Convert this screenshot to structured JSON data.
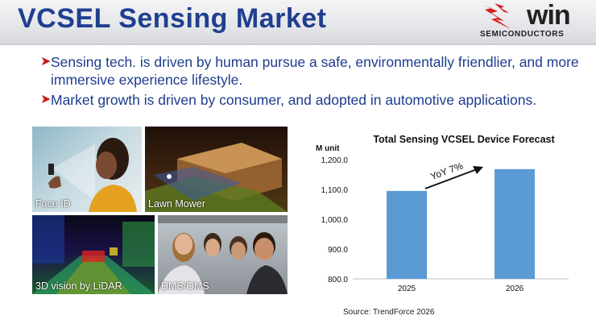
{
  "slide": {
    "title": "VCSEL Sensing Market",
    "logo": {
      "brand": "win",
      "subtitle": "SEMICONDUCTORS"
    },
    "bullets": [
      "Sensing tech. is driven by human pursue a safe, environmentally friendlier, and more immersive experience lifestyle.",
      "Market growth is driven by consumer, and adopted in automotive applications."
    ],
    "images": [
      {
        "label": "Face ID"
      },
      {
        "label": "Lawn Mower"
      },
      {
        "label": "3D vision by LiDAR"
      },
      {
        "label": "DMS/OMS"
      }
    ],
    "source": "Source: TrendForce 2026",
    "colors": {
      "title": "#1f3f8f",
      "bar": "#5b9bd5",
      "bullet_arrow": "#cc1b1b"
    }
  },
  "chart_data": {
    "type": "bar",
    "title": "Total Sensing VCSEL Device Forecast",
    "ylabel": "M unit",
    "categories": [
      "2025",
      "2026"
    ],
    "values": [
      1095,
      1168
    ],
    "ylim": [
      800,
      1200
    ],
    "yticks": [
      "800.0",
      "900.0",
      "1,000.0",
      "1,100.0",
      "1,200.0"
    ],
    "grid": false,
    "annotation": "YoY 7%"
  }
}
